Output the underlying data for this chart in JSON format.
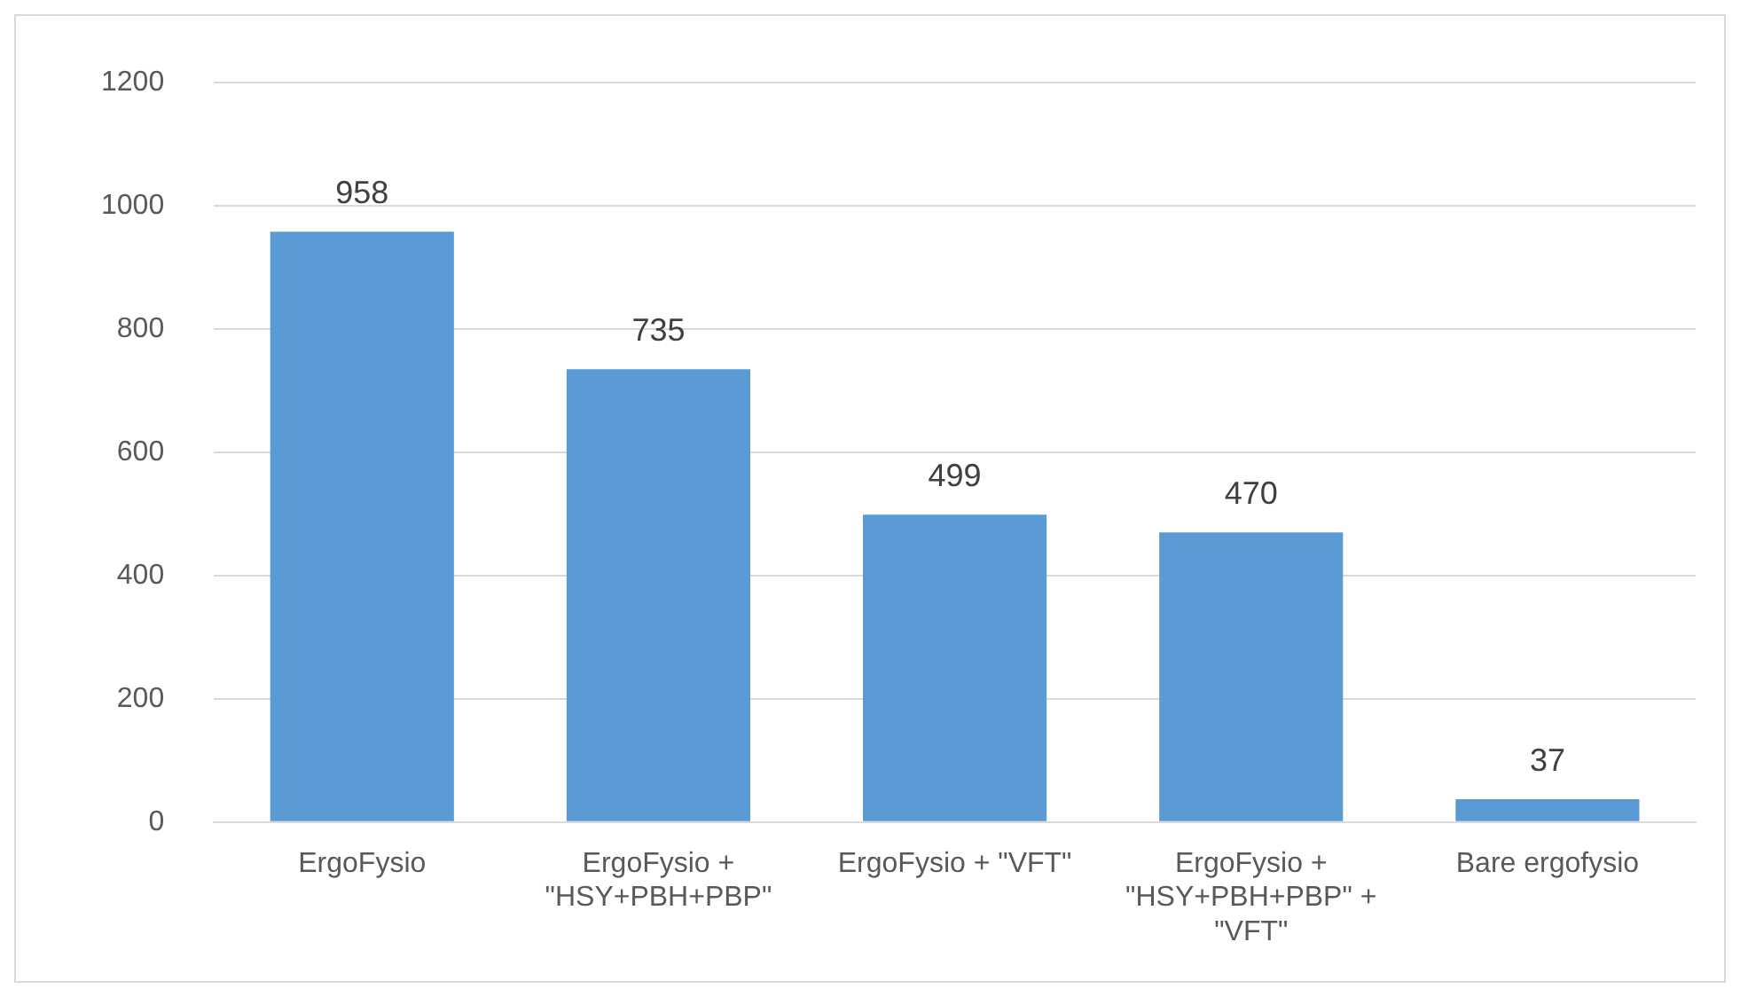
{
  "chart_data": {
    "type": "bar",
    "categories": [
      "ErgoFysio",
      "ErgoFysio + \"HSY+PBH+PBP\"",
      "ErgoFysio + \"VFT\"",
      "ErgoFysio + \"HSY+PBH+PBP\" + \"VFT\"",
      "Bare ergofysio"
    ],
    "values": [
      958,
      735,
      499,
      470,
      37
    ],
    "color": "#5b9bd5",
    "ylim": [
      0,
      1200
    ],
    "yticks": [
      0,
      200,
      400,
      600,
      800,
      1000,
      1200
    ],
    "grid": "y",
    "data_labels": true,
    "legend": false
  }
}
